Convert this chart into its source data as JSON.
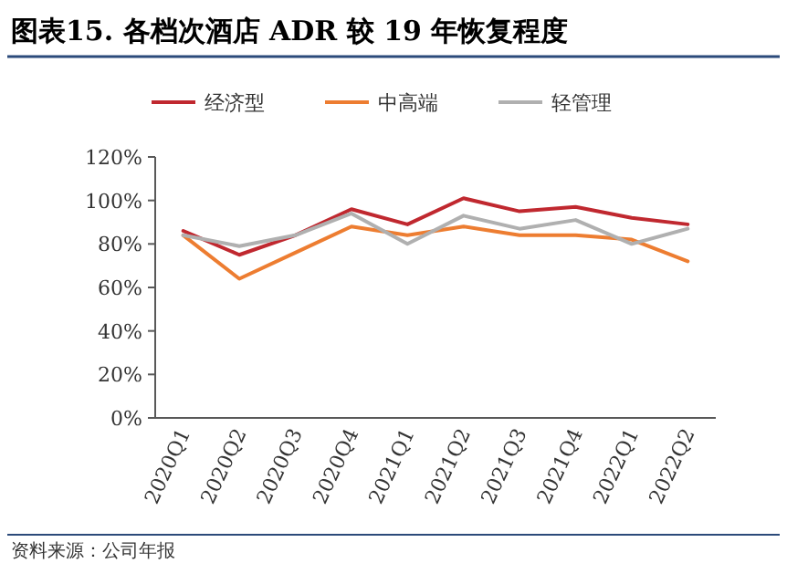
{
  "chart_data": {
    "type": "line",
    "title": "图表15. 各档次酒店 ADR 较 19 年恢复程度",
    "categories": [
      "2020Q1",
      "2020Q2",
      "2020Q3",
      "2020Q4",
      "2021Q1",
      "2021Q2",
      "2021Q3",
      "2021Q4",
      "2022Q1",
      "2022Q2"
    ],
    "series": [
      {
        "name": "经济型",
        "color": "#c0282f",
        "values": [
          86,
          75,
          84,
          96,
          89,
          101,
          95,
          97,
          92,
          89
        ]
      },
      {
        "name": "中高端",
        "color": "#ed7d31",
        "values": [
          84,
          64,
          76,
          88,
          84,
          88,
          84,
          84,
          82,
          72
        ]
      },
      {
        "name": "轻管理",
        "color": "#b0b0b0",
        "values": [
          84,
          79,
          84,
          94,
          80,
          93,
          87,
          91,
          80,
          87
        ]
      }
    ],
    "ylim": [
      0,
      120
    ],
    "yticks": [
      {
        "value": 0,
        "label": "0%"
      },
      {
        "value": 20,
        "label": "20%"
      },
      {
        "value": 40,
        "label": "40%"
      },
      {
        "value": 60,
        "label": "60%"
      },
      {
        "value": 80,
        "label": "80%"
      },
      {
        "value": 100,
        "label": "100%"
      },
      {
        "value": 120,
        "label": "120%"
      }
    ],
    "legend": "top",
    "grid": false,
    "marker": "none",
    "line_style": "solid",
    "annotations": [
      "资料来源：公司年报"
    ]
  }
}
